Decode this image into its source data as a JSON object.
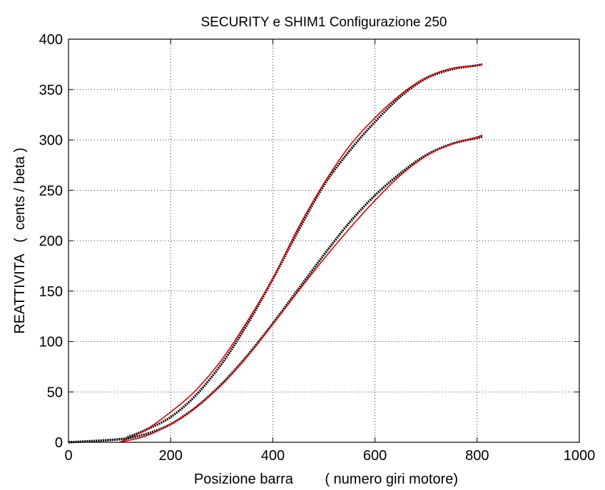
{
  "chart_data": {
    "type": "line",
    "title": "SECURITY e SHIM1   Configurazione 250",
    "xlabel": "Posizione barra        ( numero giri motore)",
    "ylabel": "REATTIVITA   (  cents / beta )",
    "xlim": [
      0,
      1000
    ],
    "ylim": [
      0,
      400
    ],
    "xticks": [
      0,
      200,
      400,
      600,
      800,
      1000
    ],
    "yticks": [
      0,
      50,
      100,
      150,
      200,
      250,
      300,
      350,
      400
    ],
    "grid": true,
    "grid_style": "dotted",
    "legend": "none",
    "series": [
      {
        "color": "#000000",
        "style": "measured",
        "x": [
          0,
          100,
          120,
          150,
          200,
          250,
          300,
          350,
          400,
          450,
          500,
          550,
          600,
          650,
          700,
          750,
          800,
          810
        ],
        "y": [
          0,
          3,
          6,
          12,
          25,
          47,
          78,
          117,
          162,
          210,
          255,
          289,
          318,
          343,
          361,
          370,
          374,
          375
        ]
      },
      {
        "color": "#e00000",
        "style": "fit",
        "x": [
          100,
          150,
          200,
          250,
          300,
          350,
          400,
          450,
          500,
          550,
          600,
          650,
          700,
          750,
          800,
          810
        ],
        "y": [
          0,
          12,
          30,
          52,
          82,
          120,
          163,
          213,
          257,
          294,
          322,
          345,
          362,
          371,
          374,
          375
        ]
      },
      {
        "color": "#000000",
        "style": "measured",
        "x": [
          0,
          100,
          150,
          200,
          250,
          300,
          350,
          400,
          450,
          500,
          550,
          600,
          650,
          700,
          750,
          800,
          810
        ],
        "y": [
          0,
          3,
          8,
          18,
          35,
          58,
          86,
          118,
          152,
          186,
          218,
          245,
          267,
          285,
          296,
          302,
          303
        ]
      },
      {
        "color": "#e00000",
        "style": "fit",
        "x": [
          100,
          150,
          200,
          250,
          300,
          350,
          400,
          450,
          500,
          550,
          600,
          650,
          700,
          750,
          800,
          810
        ],
        "y": [
          0,
          6,
          18,
          35,
          57,
          85,
          117,
          150,
          182,
          212,
          240,
          265,
          284,
          296,
          303,
          305
        ]
      }
    ]
  }
}
